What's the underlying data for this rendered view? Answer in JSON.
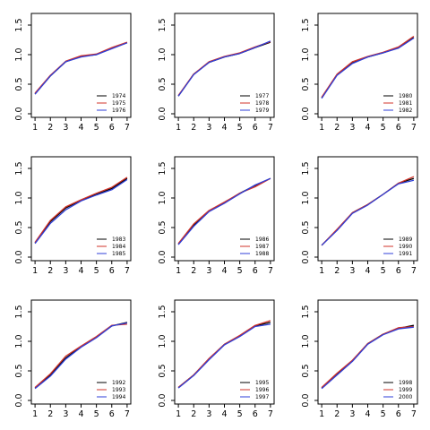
{
  "colors": {
    "black": "#000000",
    "red": "#d2332a",
    "blue": "#2f3fd8"
  },
  "chart_data": [
    {
      "type": "line",
      "x": [
        1,
        2,
        3,
        4,
        5,
        6,
        7
      ],
      "xticks": [
        "1",
        "2",
        "3",
        "4",
        "5",
        "6",
        "7"
      ],
      "ylim": [
        0,
        1.5
      ],
      "yticks": [
        "0.0",
        "0.5",
        "1.0",
        "1.5"
      ],
      "legend_position": "bottom-right",
      "series": [
        {
          "name": "1974",
          "color": "#000000",
          "values": [
            0.34,
            0.64,
            0.88,
            0.97,
            1.0,
            1.11,
            1.2
          ]
        },
        {
          "name": "1975",
          "color": "#d2332a",
          "values": [
            0.35,
            0.65,
            0.89,
            0.98,
            1.01,
            1.12,
            1.21
          ]
        },
        {
          "name": "1976",
          "color": "#2f3fd8",
          "values": [
            0.33,
            0.64,
            0.88,
            0.96,
            1.0,
            1.1,
            1.2
          ]
        }
      ]
    },
    {
      "type": "line",
      "x": [
        1,
        2,
        3,
        4,
        5,
        6,
        7
      ],
      "xticks": [
        "1",
        "2",
        "3",
        "4",
        "5",
        "6",
        "7"
      ],
      "ylim": [
        0,
        1.5
      ],
      "yticks": [
        "0.0",
        "0.5",
        "1.0",
        "1.5"
      ],
      "legend_position": "bottom-right",
      "series": [
        {
          "name": "1977",
          "color": "#000000",
          "values": [
            0.3,
            0.67,
            0.87,
            0.96,
            1.02,
            1.12,
            1.21
          ]
        },
        {
          "name": "1978",
          "color": "#d2332a",
          "values": [
            0.31,
            0.67,
            0.88,
            0.97,
            1.03,
            1.13,
            1.22
          ]
        },
        {
          "name": "1979",
          "color": "#2f3fd8",
          "values": [
            0.3,
            0.66,
            0.87,
            0.96,
            1.02,
            1.12,
            1.23
          ]
        }
      ]
    },
    {
      "type": "line",
      "x": [
        1,
        2,
        3,
        4,
        5,
        6,
        7
      ],
      "xticks": [
        "1",
        "2",
        "3",
        "4",
        "5",
        "6",
        "7"
      ],
      "ylim": [
        0,
        1.5
      ],
      "yticks": [
        "0.0",
        "0.5",
        "1.0",
        "1.5"
      ],
      "legend_position": "bottom-right",
      "series": [
        {
          "name": "1980",
          "color": "#000000",
          "values": [
            0.27,
            0.66,
            0.86,
            0.96,
            1.03,
            1.12,
            1.29
          ]
        },
        {
          "name": "1981",
          "color": "#d2332a",
          "values": [
            0.28,
            0.67,
            0.88,
            0.97,
            1.04,
            1.13,
            1.31
          ]
        },
        {
          "name": "1982",
          "color": "#2f3fd8",
          "values": [
            0.26,
            0.65,
            0.85,
            0.96,
            1.03,
            1.11,
            1.28
          ]
        }
      ]
    },
    {
      "type": "line",
      "x": [
        1,
        2,
        3,
        4,
        5,
        6,
        7
      ],
      "xticks": [
        "1",
        "2",
        "3",
        "4",
        "5",
        "6",
        "7"
      ],
      "ylim": [
        0,
        1.5
      ],
      "yticks": [
        "0.0",
        "0.5",
        "1.0",
        "1.5"
      ],
      "legend_position": "bottom-right",
      "series": [
        {
          "name": "1983",
          "color": "#000000",
          "values": [
            0.24,
            0.6,
            0.83,
            0.96,
            1.06,
            1.16,
            1.33
          ]
        },
        {
          "name": "1984",
          "color": "#d2332a",
          "values": [
            0.25,
            0.62,
            0.85,
            0.97,
            1.08,
            1.18,
            1.35
          ]
        },
        {
          "name": "1985",
          "color": "#2f3fd8",
          "values": [
            0.23,
            0.57,
            0.8,
            0.95,
            1.05,
            1.14,
            1.31
          ]
        }
      ]
    },
    {
      "type": "line",
      "x": [
        1,
        2,
        3,
        4,
        5,
        6,
        7
      ],
      "xticks": [
        "1",
        "2",
        "3",
        "4",
        "5",
        "6",
        "7"
      ],
      "ylim": [
        0,
        1.5
      ],
      "yticks": [
        "0.0",
        "0.5",
        "1.0",
        "1.5"
      ],
      "legend_position": "bottom-right",
      "series": [
        {
          "name": "1986",
          "color": "#000000",
          "values": [
            0.22,
            0.54,
            0.78,
            0.92,
            1.08,
            1.21,
            1.33
          ]
        },
        {
          "name": "1987",
          "color": "#d2332a",
          "values": [
            0.23,
            0.56,
            0.79,
            0.93,
            1.08,
            1.19,
            1.33
          ]
        },
        {
          "name": "1988",
          "color": "#2f3fd8",
          "values": [
            0.21,
            0.52,
            0.77,
            0.91,
            1.07,
            1.22,
            1.33
          ]
        }
      ]
    },
    {
      "type": "line",
      "x": [
        1,
        2,
        3,
        4,
        5,
        6,
        7
      ],
      "xticks": [
        "1",
        "2",
        "3",
        "4",
        "5",
        "6",
        "7"
      ],
      "ylim": [
        0,
        1.5
      ],
      "yticks": [
        "0.0",
        "0.5",
        "1.0",
        "1.5"
      ],
      "legend_position": "bottom-right",
      "series": [
        {
          "name": "1989",
          "color": "#000000",
          "values": [
            0.2,
            0.46,
            0.75,
            0.89,
            1.06,
            1.25,
            1.33
          ]
        },
        {
          "name": "1990",
          "color": "#d2332a",
          "values": [
            0.2,
            0.47,
            0.75,
            0.89,
            1.06,
            1.25,
            1.36
          ]
        },
        {
          "name": "1991",
          "color": "#2f3fd8",
          "values": [
            0.2,
            0.45,
            0.74,
            0.88,
            1.06,
            1.24,
            1.3
          ]
        }
      ]
    },
    {
      "type": "line",
      "x": [
        1,
        2,
        3,
        4,
        5,
        6,
        7
      ],
      "xticks": [
        "1",
        "2",
        "3",
        "4",
        "5",
        "6",
        "7"
      ],
      "ylim": [
        0,
        1.5
      ],
      "yticks": [
        "0.0",
        "0.5",
        "1.0",
        "1.5"
      ],
      "legend_position": "bottom-right",
      "series": [
        {
          "name": "1992",
          "color": "#000000",
          "values": [
            0.21,
            0.43,
            0.72,
            0.91,
            1.07,
            1.26,
            1.32
          ]
        },
        {
          "name": "1993",
          "color": "#d2332a",
          "values": [
            0.22,
            0.45,
            0.75,
            0.92,
            1.08,
            1.27,
            1.29
          ]
        },
        {
          "name": "1994",
          "color": "#2f3fd8",
          "values": [
            0.2,
            0.41,
            0.7,
            0.9,
            1.06,
            1.26,
            1.31
          ]
        }
      ]
    },
    {
      "type": "line",
      "x": [
        1,
        2,
        3,
        4,
        5,
        6,
        7
      ],
      "xticks": [
        "1",
        "2",
        "3",
        "4",
        "5",
        "6",
        "7"
      ],
      "ylim": [
        0,
        1.5
      ],
      "yticks": [
        "0.0",
        "0.5",
        "1.0",
        "1.5"
      ],
      "legend_position": "bottom-right",
      "series": [
        {
          "name": "1995",
          "color": "#000000",
          "values": [
            0.22,
            0.43,
            0.7,
            0.95,
            1.09,
            1.26,
            1.32
          ]
        },
        {
          "name": "1996",
          "color": "#d2332a",
          "values": [
            0.22,
            0.43,
            0.71,
            0.95,
            1.1,
            1.27,
            1.35
          ]
        },
        {
          "name": "1997",
          "color": "#2f3fd8",
          "values": [
            0.21,
            0.42,
            0.69,
            0.94,
            1.08,
            1.25,
            1.29
          ]
        }
      ]
    },
    {
      "type": "line",
      "x": [
        1,
        2,
        3,
        4,
        5,
        6,
        7
      ],
      "xticks": [
        "1",
        "2",
        "3",
        "4",
        "5",
        "6",
        "7"
      ],
      "ylim": [
        0,
        1.5
      ],
      "yticks": [
        "0.0",
        "0.5",
        "1.0",
        "1.5"
      ],
      "legend_position": "bottom-right",
      "series": [
        {
          "name": "1998",
          "color": "#000000",
          "values": [
            0.21,
            0.45,
            0.67,
            0.96,
            1.12,
            1.22,
            1.27
          ]
        },
        {
          "name": "1999",
          "color": "#d2332a",
          "values": [
            0.22,
            0.46,
            0.68,
            0.96,
            1.12,
            1.23,
            1.25
          ]
        },
        {
          "name": "2000",
          "color": "#2f3fd8",
          "values": [
            0.2,
            0.43,
            0.66,
            0.95,
            1.11,
            1.21,
            1.24
          ]
        }
      ]
    }
  ]
}
